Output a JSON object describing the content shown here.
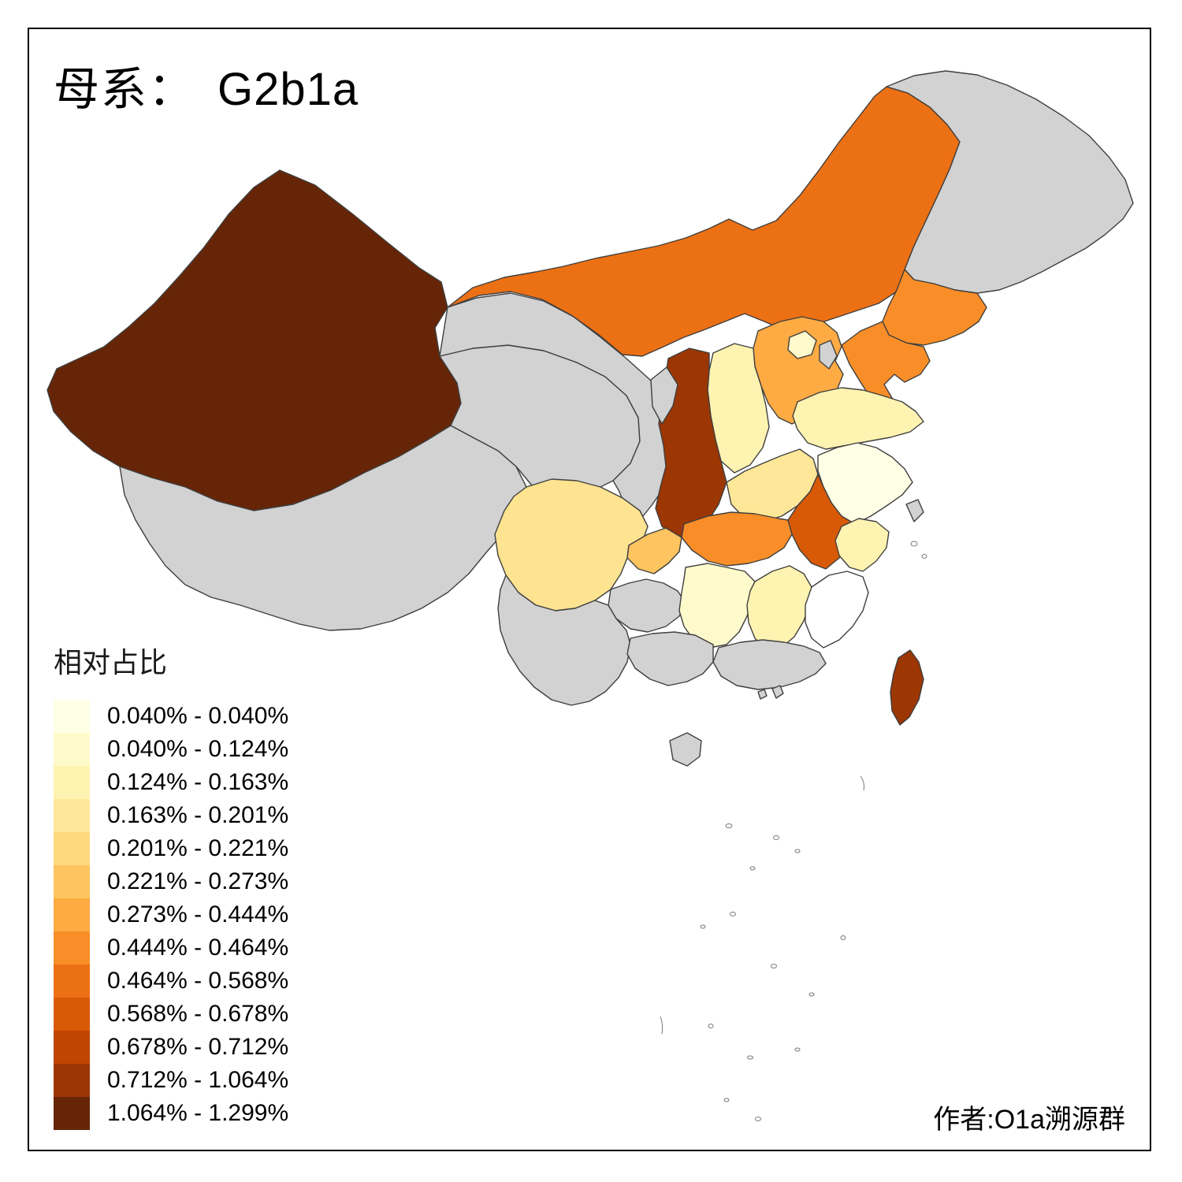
{
  "title": {
    "prefix": "母系：",
    "value": "G2b1a"
  },
  "legend": {
    "title": "相对占比",
    "no_data_color": "#D2D2D2",
    "items": [
      {
        "label": "0.040% - 0.040%",
        "color": "#FFFFE5"
      },
      {
        "label": "0.040% - 0.124%",
        "color": "#FFFACC"
      },
      {
        "label": "0.124% - 0.163%",
        "color": "#FFF3B2"
      },
      {
        "label": "0.163% - 0.201%",
        "color": "#FEE798"
      },
      {
        "label": "0.201% - 0.221%",
        "color": "#FED97E"
      },
      {
        "label": "0.221% - 0.273%",
        "color": "#FEC45F"
      },
      {
        "label": "0.273% - 0.444%",
        "color": "#FEAB43"
      },
      {
        "label": "0.444% - 0.464%",
        "color": "#F98E28"
      },
      {
        "label": "0.464% - 0.568%",
        "color": "#EC7014"
      },
      {
        "label": "0.568% - 0.678%",
        "color": "#D85A07"
      },
      {
        "label": "0.678% - 0.712%",
        "color": "#BF4502"
      },
      {
        "label": "0.712% - 1.064%",
        "color": "#9C3603"
      },
      {
        "label": "1.064% - 1.299%",
        "color": "#662506"
      }
    ]
  },
  "author": "作者:O1a溯源群",
  "map": {
    "regions": {
      "xinjiang": {
        "color": "#662506"
      },
      "tibet": {
        "color": "#D2D2D2"
      },
      "qinghai": {
        "color": "#D2D2D2"
      },
      "gansu": {
        "color": "#D2D2D2"
      },
      "ningxia": {
        "color": "#D2D2D2"
      },
      "inner_mongolia": {
        "color": "#EC7014"
      },
      "heilongjiang": {
        "color": "#D2D2D2"
      },
      "jilin": {
        "color": "#F98E28"
      },
      "liaoning": {
        "color": "#F98E28"
      },
      "hebei": {
        "color": "#FEAB43"
      },
      "beijing": {
        "color": "#FFFACC"
      },
      "tianjin": {
        "color": "#D2D2D2"
      },
      "shanxi": {
        "color": "#FFF3B2"
      },
      "shaanxi": {
        "color": "#9C3603"
      },
      "shandong": {
        "color": "#FFF3B2"
      },
      "henan": {
        "color": "#FEE798"
      },
      "jiangsu": {
        "color": "#FFFFE5"
      },
      "anhui": {
        "color": "#D85A07"
      },
      "shanghai": {
        "color": "#D2D2D2"
      },
      "hubei": {
        "color": "#F98E28"
      },
      "chongqing": {
        "color": "#FEC45F"
      },
      "sichuan": {
        "color": "#FEE391"
      },
      "guizhou": {
        "color": "#D2D2D2"
      },
      "yunnan": {
        "color": "#D2D2D2"
      },
      "hunan": {
        "color": "#FFFACC"
      },
      "jiangxi": {
        "color": "#FFF3B2"
      },
      "zhejiang": {
        "color": "#FFF3B2"
      },
      "fujian": {
        "color": "#FFFFFF"
      },
      "guangdong": {
        "color": "#D2D2D2"
      },
      "guangxi": {
        "color": "#D2D2D2"
      },
      "hainan": {
        "color": "#D2D2D2"
      },
      "taiwan": {
        "color": "#9C3603"
      },
      "hongkong": {
        "color": "#D2D2D2"
      },
      "macau": {
        "color": "#D2D2D2"
      }
    }
  }
}
